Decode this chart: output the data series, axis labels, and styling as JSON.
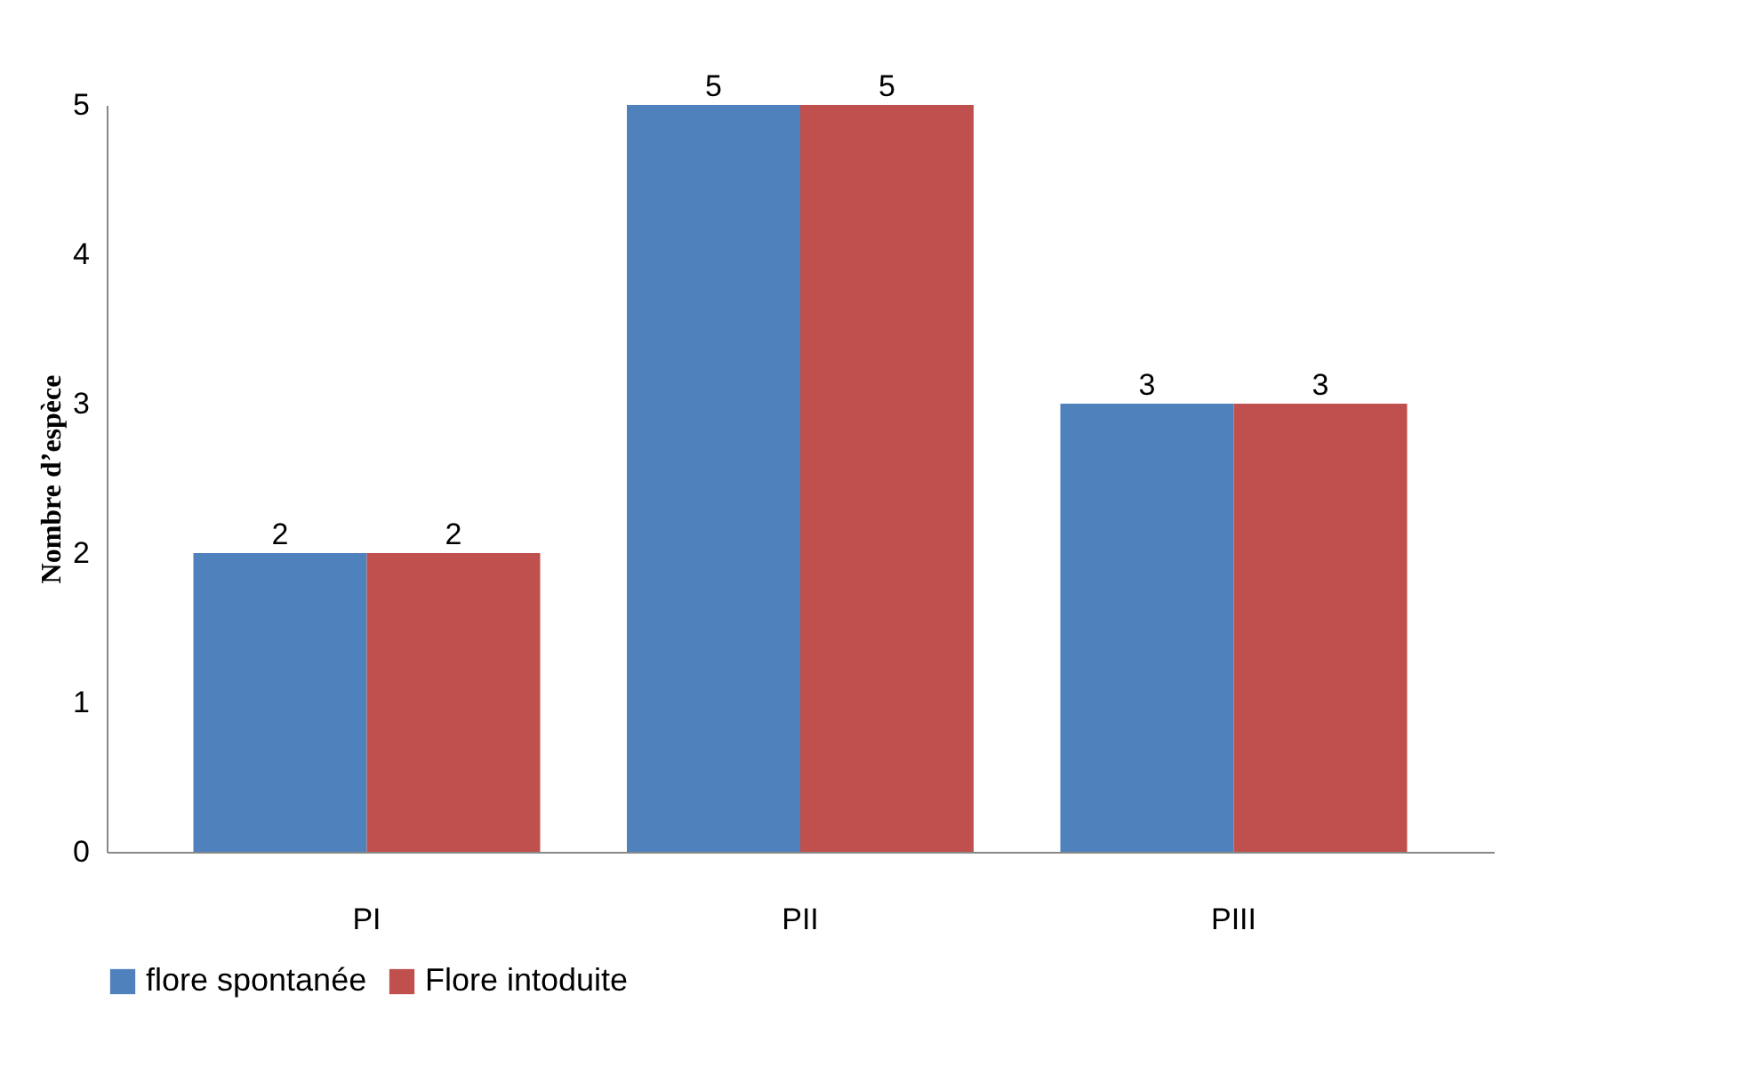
{
  "chart_data": {
    "type": "bar",
    "ylabel": "Nombre d’espèce",
    "categories": [
      "PI",
      "PII",
      "PIII"
    ],
    "series": [
      {
        "name": "flore spontanée",
        "color": "#4f81bd",
        "values": [
          2,
          5,
          3
        ]
      },
      {
        "name": "Flore intoduite",
        "color": "#c0504d",
        "values": [
          2,
          5,
          3
        ]
      }
    ],
    "ylim": [
      0,
      5
    ],
    "yticks": [
      0,
      1,
      2,
      3,
      4,
      5
    ],
    "data_labels": true,
    "legend": "bottom",
    "grid": false
  }
}
